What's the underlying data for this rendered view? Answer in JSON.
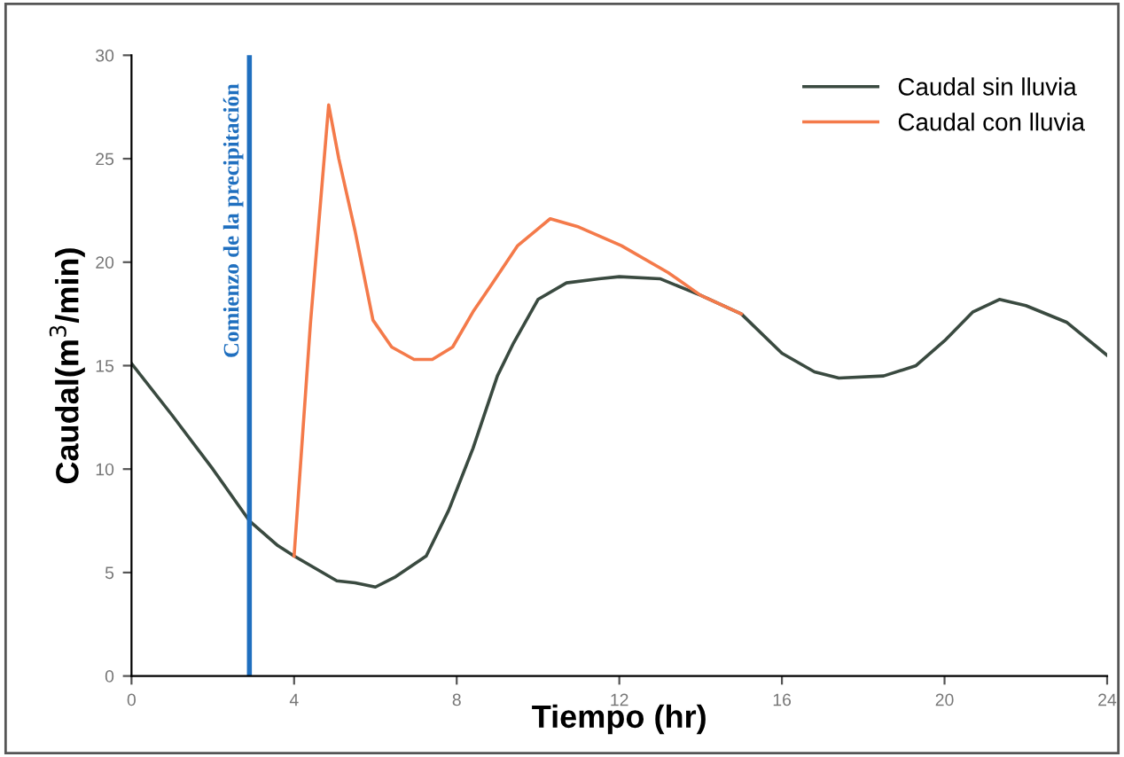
{
  "chart_data": {
    "type": "line",
    "xlabel": "Tiempo (hr)",
    "ylabel": "Caudal(m$^{3}$/min)",
    "xlim": [
      0,
      24
    ],
    "xticks": [
      0,
      4,
      8,
      12,
      16,
      20,
      24
    ],
    "ylim": [
      0,
      30
    ],
    "yticks": [
      0,
      5,
      10,
      15,
      20,
      25,
      30
    ],
    "grid": false,
    "legend": "top right",
    "marker": "none",
    "line_style": "solid",
    "ref_lines": [
      {
        "axis": "x",
        "value": 2.9,
        "label": "Comienzo de la precipitación",
        "color": "#1f6fbf"
      }
    ],
    "series": [
      {
        "name": "Caudal sin lluvia",
        "color": "#3a4a40",
        "x": [
          0,
          1,
          2,
          2.9,
          3.6,
          4,
          5.05,
          5.5,
          6,
          6.5,
          7.25,
          7.8,
          8.4,
          9,
          9.4,
          10,
          10.7,
          11.5,
          12,
          13,
          14,
          15,
          16,
          16.8,
          17.4,
          18.5,
          19.3,
          20,
          20.7,
          21.35,
          22,
          23,
          24
        ],
        "values": [
          15.1,
          12.6,
          10.0,
          7.5,
          6.3,
          5.8,
          4.6,
          4.5,
          4.3,
          4.8,
          5.8,
          8.0,
          11.0,
          14.5,
          16.1,
          18.2,
          19.0,
          19.2,
          19.3,
          19.2,
          18.4,
          17.5,
          15.6,
          14.7,
          14.4,
          14.5,
          15.0,
          16.2,
          17.6,
          18.2,
          17.9,
          17.1,
          15.5
        ]
      },
      {
        "name": "Caudal con lluvia",
        "color": "#f47a4a",
        "x": [
          4,
          4.4,
          4.85,
          5.1,
          5.5,
          5.94,
          6.4,
          6.95,
          7.4,
          7.9,
          8.4,
          8.85,
          9.5,
          10.3,
          11,
          12.05,
          13.2,
          14,
          15
        ],
        "values": [
          5.8,
          17,
          27.6,
          25,
          21.5,
          17.2,
          15.9,
          15.3,
          15.3,
          15.9,
          17.6,
          18.9,
          20.8,
          22.1,
          21.7,
          20.8,
          19.5,
          18.4,
          17.5
        ]
      }
    ]
  }
}
